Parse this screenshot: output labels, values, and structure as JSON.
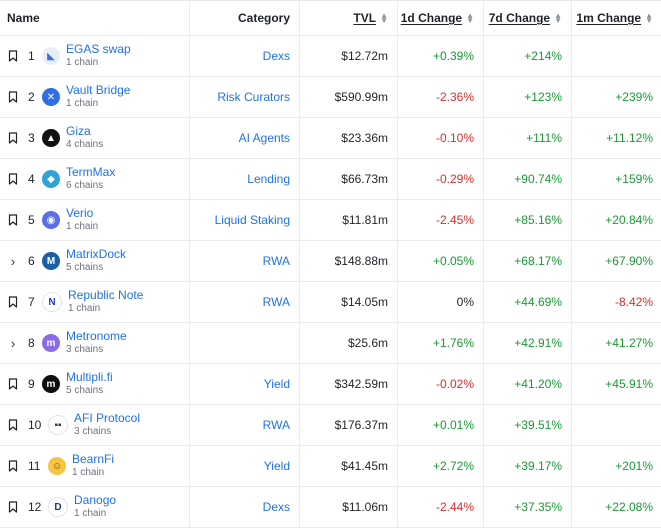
{
  "header": {
    "name": "Name",
    "category": "Category",
    "tvl": "TVL",
    "change_1d": "1d Change",
    "change_7d": "7d Change",
    "change_1m": "1m Change"
  },
  "rows": [
    {
      "rank": "1",
      "name": "EGAS swap",
      "chains": "1 chain",
      "category": "Dexs",
      "tvl": "$12.72m",
      "d1": "+0.39%",
      "d7": "+214%",
      "m1": ""
    },
    {
      "rank": "2",
      "name": "Vault Bridge",
      "chains": "1 chain",
      "category": "Risk Curators",
      "tvl": "$590.99m",
      "d1": "-2.36%",
      "d7": "+123%",
      "m1": "+239%"
    },
    {
      "rank": "3",
      "name": "Giza",
      "chains": "4 chains",
      "category": "AI Agents",
      "tvl": "$23.36m",
      "d1": "-0.10%",
      "d7": "+111%",
      "m1": "+11.12%"
    },
    {
      "rank": "4",
      "name": "TermMax",
      "chains": "6 chains",
      "category": "Lending",
      "tvl": "$66.73m",
      "d1": "-0.29%",
      "d7": "+90.74%",
      "m1": "+159%"
    },
    {
      "rank": "5",
      "name": "Verio",
      "chains": "1 chain",
      "category": "Liquid Staking",
      "tvl": "$11.81m",
      "d1": "-2.45%",
      "d7": "+85.16%",
      "m1": "+20.84%"
    },
    {
      "rank": "6",
      "name": "MatrixDock",
      "chains": "5 chains",
      "category": "RWA",
      "tvl": "$148.88m",
      "d1": "+0.05%",
      "d7": "+68.17%",
      "m1": "+67.90%"
    },
    {
      "rank": "7",
      "name": "Republic Note",
      "chains": "1 chain",
      "category": "RWA",
      "tvl": "$14.05m",
      "d1": "0%",
      "d7": "+44.69%",
      "m1": "-8.42%"
    },
    {
      "rank": "8",
      "name": "Metronome",
      "chains": "3 chains",
      "category": "",
      "tvl": "$25.6m",
      "d1": "+1.76%",
      "d7": "+42.91%",
      "m1": "+41.27%"
    },
    {
      "rank": "9",
      "name": "Multipli.fi",
      "chains": "5 chains",
      "category": "Yield",
      "tvl": "$342.59m",
      "d1": "-0.02%",
      "d7": "+41.20%",
      "m1": "+45.91%"
    },
    {
      "rank": "10",
      "name": "AFI Protocol",
      "chains": "3 chains",
      "category": "RWA",
      "tvl": "$176.37m",
      "d1": "+0.01%",
      "d7": "+39.51%",
      "m1": ""
    },
    {
      "rank": "11",
      "name": "BearnFi",
      "chains": "1 chain",
      "category": "Yield",
      "tvl": "$41.45m",
      "d1": "+2.72%",
      "d7": "+39.17%",
      "m1": "+201%"
    },
    {
      "rank": "12",
      "name": "Danogo",
      "chains": "1 chain",
      "category": "Dexs",
      "tvl": "$11.06m",
      "d1": "-2.44%",
      "d7": "+37.35%",
      "m1": "+22.08%"
    }
  ],
  "colors": {
    "link": "#2172e5",
    "positive": "#1a9a35",
    "negative": "#d3302f"
  }
}
